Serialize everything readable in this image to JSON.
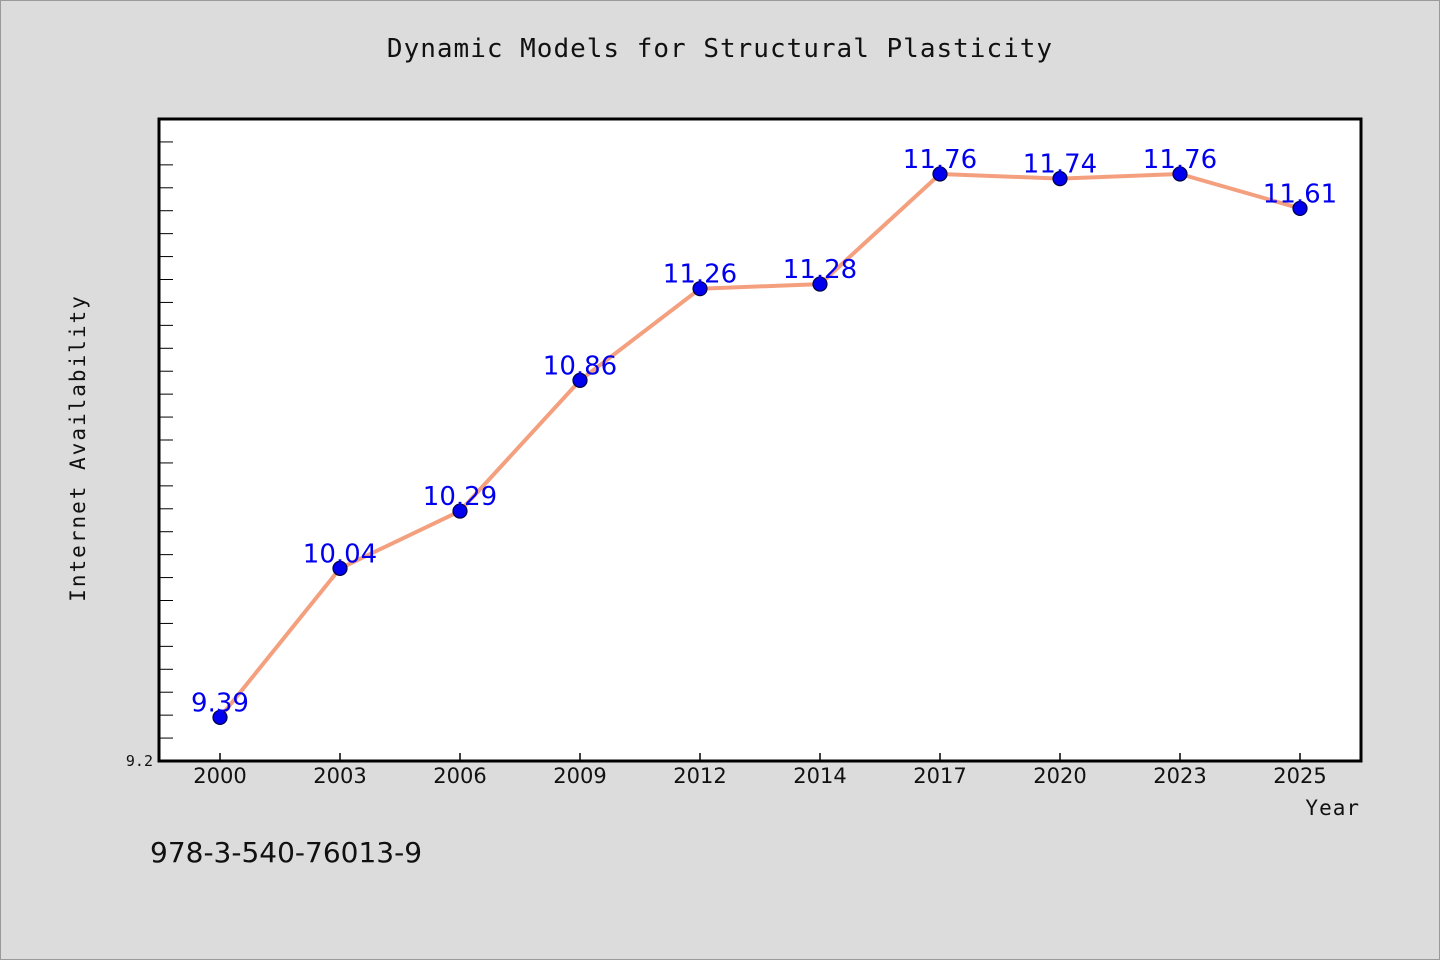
{
  "page": {
    "background": "#dcdcdc"
  },
  "chart_data": {
    "type": "line",
    "title": "Dynamic Models for Structural Plasticity",
    "xlabel": "Year",
    "ylabel": "Internet Availability",
    "categories": [
      "2000",
      "2003",
      "2006",
      "2009",
      "2012",
      "2014",
      "2017",
      "2020",
      "2023",
      "2025"
    ],
    "series": [
      {
        "values": [
          9.39,
          10.04,
          10.29,
          10.86,
          11.26,
          11.28,
          11.76,
          11.74,
          11.76,
          11.61
        ],
        "line_color": "#f4a07e",
        "marker_color": "#0000ee"
      }
    ],
    "data_labels": [
      "9.39",
      "10.04",
      "10.29",
      "10.86",
      "11.26",
      "11.28",
      "11.76",
      "11.74",
      "11.76",
      "11.61"
    ],
    "ylim": [
      9.2,
      12.0
    ],
    "ytick_labels": [
      "9.2"
    ],
    "minor_tick_step": 0.1,
    "grid": false,
    "legend": "none"
  },
  "footer": {
    "isbn": "978-3-540-76013-9"
  }
}
